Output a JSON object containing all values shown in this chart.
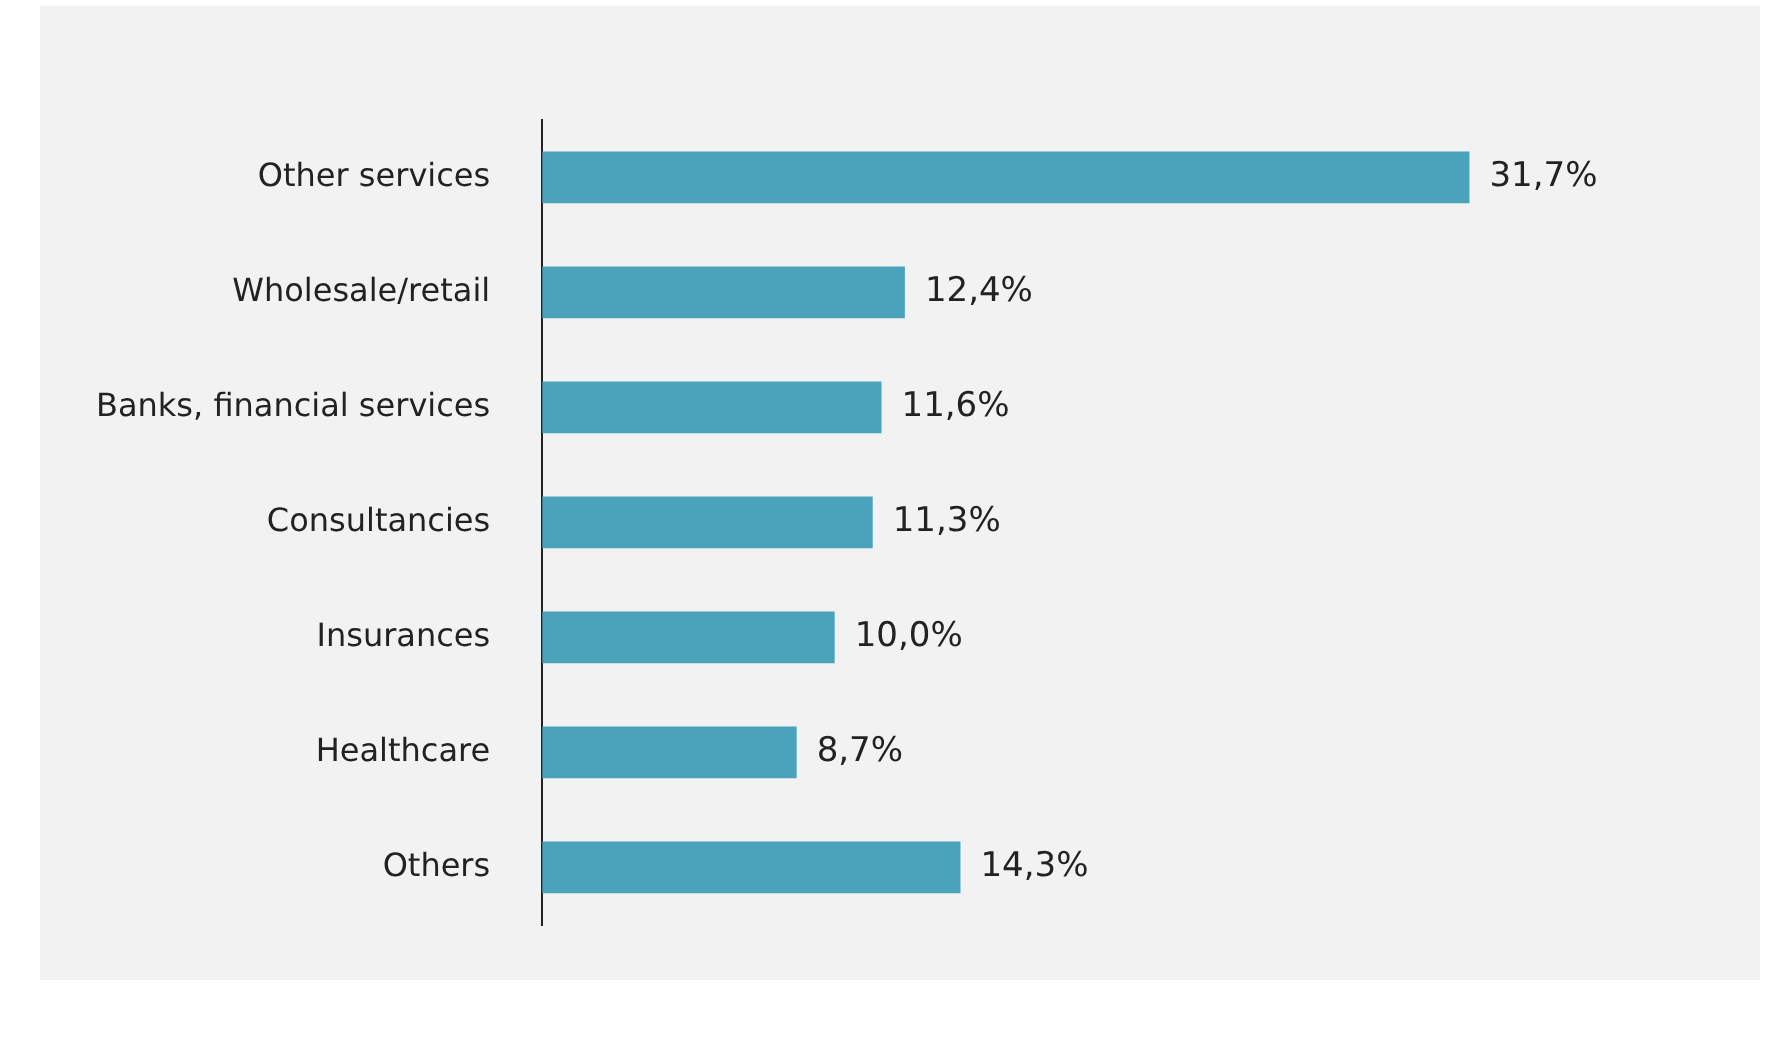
{
  "chart_data": {
    "type": "bar",
    "orientation": "horizontal",
    "categories": [
      "Other services",
      "Wholesale/retail",
      "Banks, financial services",
      "Consultancies",
      "Insurances",
      "Healthcare",
      "Others"
    ],
    "values": [
      31.7,
      12.4,
      11.6,
      11.3,
      10.0,
      8.7,
      14.3
    ],
    "value_labels": [
      "31,7%",
      "12,4%",
      "11,6%",
      "11,3%",
      "10,0%",
      "8,7%",
      "14,3%"
    ],
    "color": "#4ba3bb",
    "legend": false,
    "tick_labels": "y"
  }
}
